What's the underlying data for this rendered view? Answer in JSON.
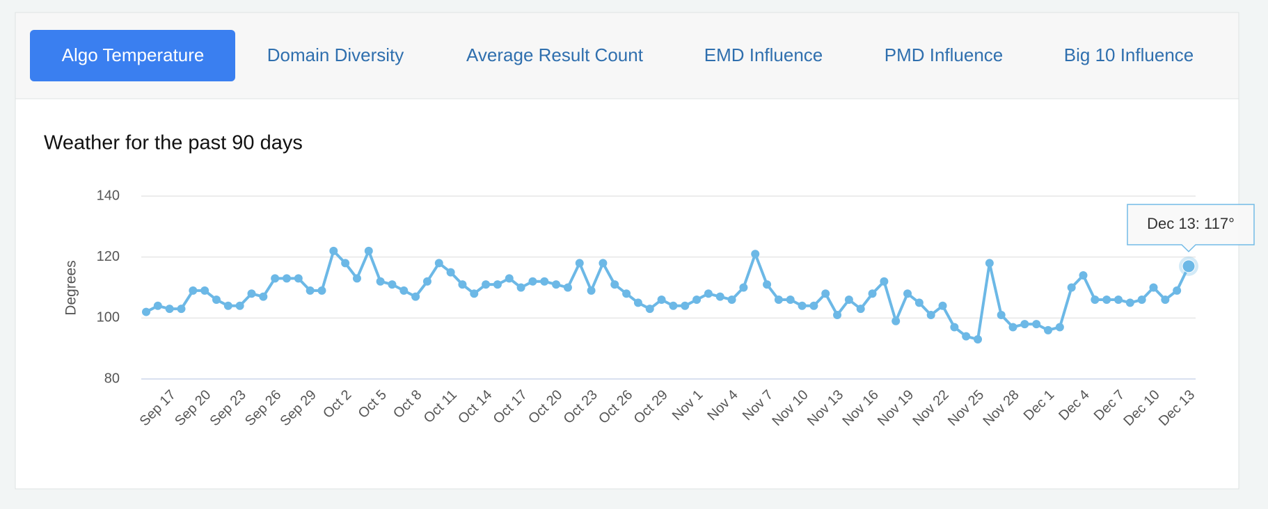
{
  "tabs": [
    "Algo Temperature",
    "Domain Diversity",
    "Average Result Count",
    "EMD Influence",
    "PMD Influence",
    "Big 10 Influence"
  ],
  "chart_data": {
    "type": "line",
    "title": "Weather for the past 90 days",
    "y_label": "Degrees",
    "categories": [
      null,
      null,
      "Sep 17",
      null,
      null,
      "Sep 20",
      null,
      null,
      "Sep 23",
      null,
      null,
      "Sep 26",
      null,
      null,
      "Sep 29",
      null,
      null,
      "Oct 2",
      null,
      null,
      "Oct 5",
      null,
      null,
      "Oct 8",
      null,
      null,
      "Oct 11",
      null,
      null,
      "Oct 14",
      null,
      null,
      "Oct 17",
      null,
      null,
      "Oct 20",
      null,
      null,
      "Oct 23",
      null,
      null,
      "Oct 26",
      null,
      null,
      "Oct 29",
      null,
      null,
      "Nov 1",
      null,
      null,
      "Nov 4",
      null,
      null,
      "Nov 7",
      null,
      null,
      "Nov 10",
      null,
      null,
      "Nov 13",
      null,
      null,
      "Nov 16",
      null,
      null,
      "Nov 19",
      null,
      null,
      "Nov 22",
      null,
      null,
      "Nov 25",
      null,
      null,
      "Nov 28",
      null,
      null,
      "Dec 1",
      null,
      null,
      "Dec 4",
      null,
      null,
      "Dec 7",
      null,
      null,
      "Dec 10",
      null,
      null,
      "Dec 13"
    ],
    "series": [
      {
        "name": "Degrees",
        "color": "#6cb8e6",
        "values": [
          102,
          104,
          103,
          103,
          109,
          109,
          106,
          104,
          104,
          108,
          107,
          113,
          113,
          113,
          109,
          109,
          122,
          118,
          113,
          122,
          112,
          111,
          109,
          107,
          112,
          118,
          115,
          111,
          108,
          111,
          111,
          113,
          110,
          112,
          112,
          111,
          110,
          118,
          109,
          118,
          111,
          108,
          105,
          103,
          106,
          104,
          104,
          106,
          108,
          107,
          106,
          110,
          121,
          111,
          106,
          106,
          104,
          104,
          108,
          101,
          106,
          103,
          108,
          112,
          99,
          108,
          105,
          101,
          104,
          97,
          94,
          93,
          118,
          101,
          97,
          98,
          98,
          96,
          97,
          110,
          114,
          106,
          106,
          106,
          105,
          106,
          110,
          106,
          109,
          117
        ]
      }
    ],
    "ylim": [
      80,
      140
    ],
    "yticks": [
      80,
      100,
      120,
      140
    ],
    "grid": true,
    "tooltip": "Dec 13: 117°"
  }
}
